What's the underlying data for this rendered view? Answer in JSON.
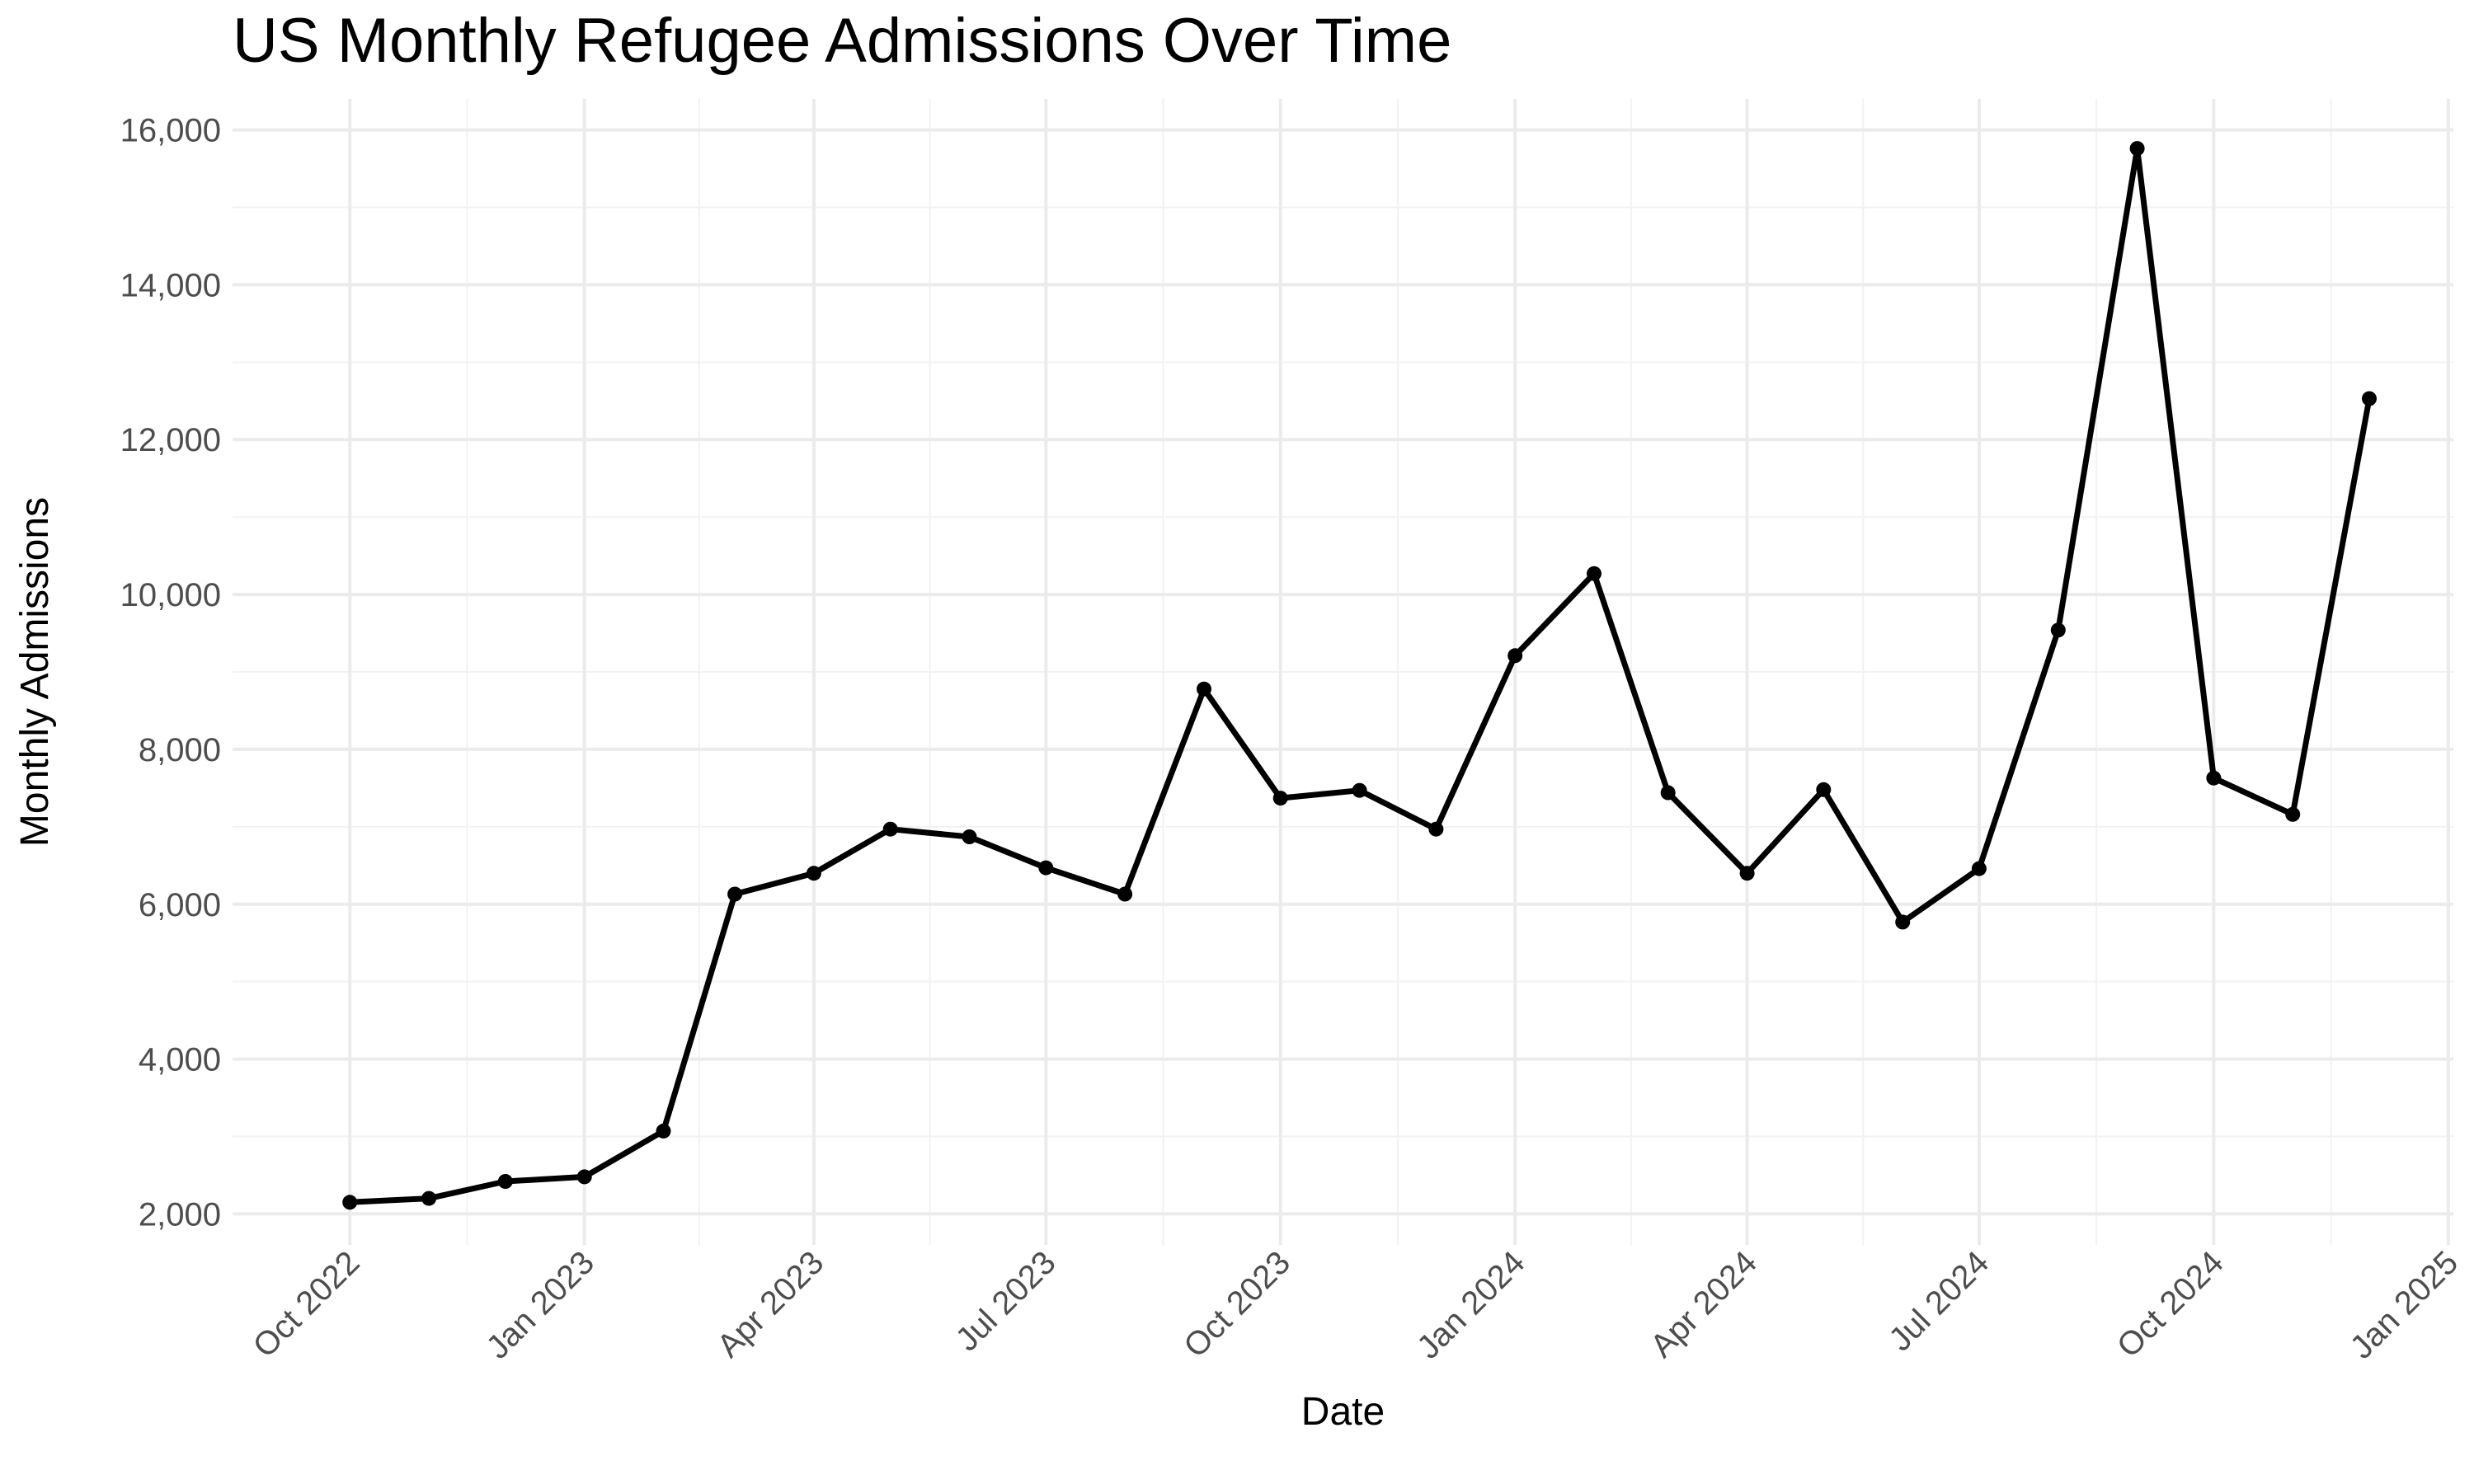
{
  "chart_data": {
    "type": "line",
    "title": "US Monthly Refugee Admissions Over Time",
    "xlabel": "Date",
    "ylabel": "Monthly Admissions",
    "ylim": [
      1600,
      16400
    ],
    "xlim": [
      "2022-08-16",
      "2025-01-03"
    ],
    "grid": true,
    "y_ticks": [
      2000,
      4000,
      6000,
      8000,
      10000,
      12000,
      14000,
      16000
    ],
    "y_tick_labels": [
      "2,000",
      "4,000",
      "6,000",
      "8,000",
      "10,000",
      "12,000",
      "14,000",
      "16,000"
    ],
    "x_ticks": [
      "2022-10-01",
      "2023-01-01",
      "2023-04-01",
      "2023-07-01",
      "2023-10-01",
      "2024-01-01",
      "2024-04-01",
      "2024-07-01",
      "2024-10-01",
      "2025-01-01"
    ],
    "x_tick_labels": [
      "Oct 2022",
      "Jan 2023",
      "Apr 2023",
      "Jul 2023",
      "Oct 2023",
      "Jan 2024",
      "Apr 2024",
      "Jul 2024",
      "Oct 2024",
      "Jan 2025"
    ],
    "series": [
      {
        "color": "#000000",
        "x": [
          "2022-10-01",
          "2022-11-01",
          "2022-12-01",
          "2023-01-01",
          "2023-02-01",
          "2023-03-01",
          "2023-04-01",
          "2023-05-01",
          "2023-06-01",
          "2023-07-01",
          "2023-08-01",
          "2023-09-01",
          "2023-10-01",
          "2023-11-01",
          "2023-12-01",
          "2024-01-01",
          "2024-02-01",
          "2024-03-01",
          "2024-04-01",
          "2024-05-01",
          "2024-06-01",
          "2024-07-01",
          "2024-08-01",
          "2024-09-01",
          "2024-10-01",
          "2024-11-01",
          "2024-12-01"
        ],
        "values": [
          2150,
          2200,
          2420,
          2480,
          3070,
          6130,
          6400,
          6970,
          6870,
          6470,
          6130,
          8780,
          7370,
          7470,
          6970,
          9210,
          10270,
          7440,
          6400,
          7480,
          5770,
          6460,
          9540,
          15760,
          7630,
          7160,
          12530
        ]
      }
    ]
  }
}
